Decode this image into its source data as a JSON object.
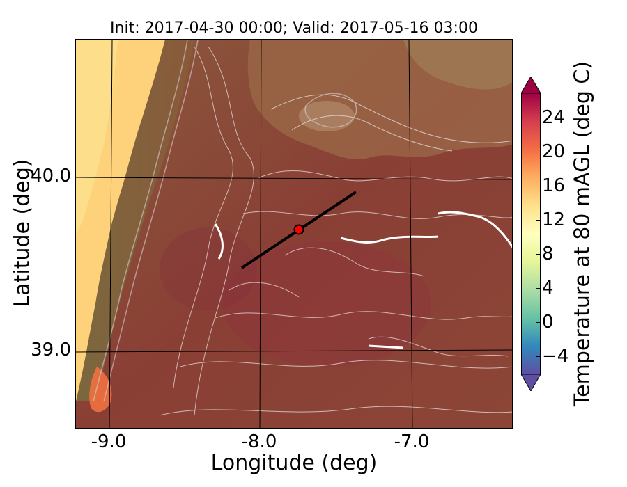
{
  "title": "Init: 2017-04-30 00:00; Valid: 2017-05-16 03:00",
  "axes": {
    "xlabel": "Longitude (deg)",
    "ylabel": "Latitude (deg)",
    "xticks": [
      "-9.0",
      "-8.0",
      "-7.0"
    ],
    "yticks": [
      "40.0",
      "39.0"
    ]
  },
  "colorbar": {
    "label": "Temperature at 80 mAGL (deg C)",
    "ticks": [
      "24",
      "20",
      "16",
      "12",
      "8",
      "4",
      "0",
      "−4"
    ],
    "colors": [
      "#5e4fa2",
      "#3288bd",
      "#66c2a5",
      "#abdda4",
      "#e6f598",
      "#ffffbf",
      "#fee08b",
      "#fdae61",
      "#f46d43",
      "#d53e4f",
      "#9e0142"
    ]
  },
  "map": {
    "transect_marker": "red-circle",
    "transect_line": "black-line"
  }
}
